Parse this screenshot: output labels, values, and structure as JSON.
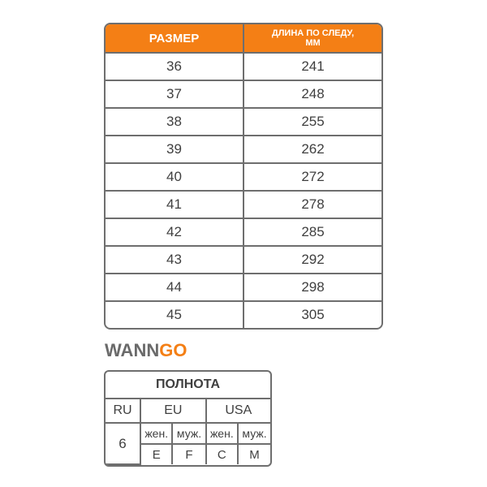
{
  "size_table": {
    "headers": [
      "РАЗМЕР",
      "ДЛИНА ПО СЛЕДУ,",
      "ММ"
    ],
    "rows": [
      [
        "36",
        "241"
      ],
      [
        "37",
        "248"
      ],
      [
        "38",
        "255"
      ],
      [
        "39",
        "262"
      ],
      [
        "40",
        "272"
      ],
      [
        "41",
        "278"
      ],
      [
        "42",
        "285"
      ],
      [
        "43",
        "292"
      ],
      [
        "44",
        "298"
      ],
      [
        "45",
        "305"
      ]
    ],
    "header_color": "#f47f15"
  },
  "logo": {
    "part1": "WANN",
    "part2": "GO"
  },
  "fullness_table": {
    "title": "ПОЛНОТА",
    "regions": [
      "RU",
      "EU",
      "USA"
    ],
    "ru_value": "6",
    "genders": [
      "жен.",
      "муж.",
      "жен.",
      "муж."
    ],
    "values": [
      "E",
      "F",
      "C",
      "M"
    ]
  }
}
